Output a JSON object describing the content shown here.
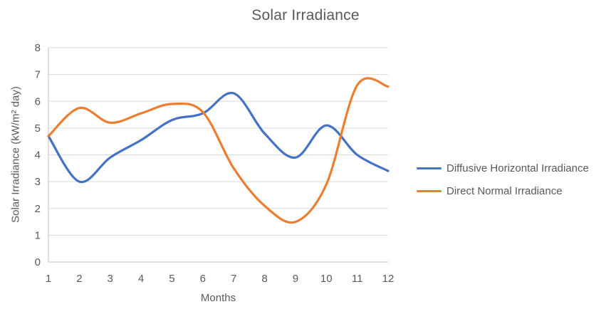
{
  "chart_data": {
    "type": "line",
    "title": "Solar Irradiance",
    "xlabel": "Months",
    "ylabel": "Solar Irradiance (kW/m² day)",
    "x": [
      1,
      2,
      3,
      4,
      5,
      6,
      7,
      8,
      9,
      10,
      11,
      12
    ],
    "series": [
      {
        "name": "Diffusive Horizontal Irradiance",
        "color": "#4472C4",
        "values": [
          4.7,
          3.0,
          3.9,
          4.55,
          5.3,
          5.55,
          6.3,
          4.8,
          3.9,
          5.1,
          4.0,
          3.4
        ]
      },
      {
        "name": "Direct Normal Irradiance",
        "color": "#ED7D31",
        "values": [
          4.7,
          5.75,
          5.2,
          5.55,
          5.9,
          5.6,
          3.5,
          2.1,
          1.5,
          2.9,
          6.6,
          6.55
        ]
      }
    ],
    "xlim": [
      1,
      12
    ],
    "ylim": [
      0,
      8
    ],
    "xticks": [
      1,
      2,
      3,
      4,
      5,
      6,
      7,
      8,
      9,
      10,
      11,
      12
    ],
    "yticks": [
      0,
      1,
      2,
      3,
      4,
      5,
      6,
      7,
      8
    ],
    "grid": "horizontal-only",
    "legend_position": "right-middle",
    "line_style": "smooth"
  },
  "colors": {
    "background": "#FFFFFF",
    "text": "#595959",
    "gridline": "#D9D9D9",
    "axis_line": "#BFBFBF"
  }
}
